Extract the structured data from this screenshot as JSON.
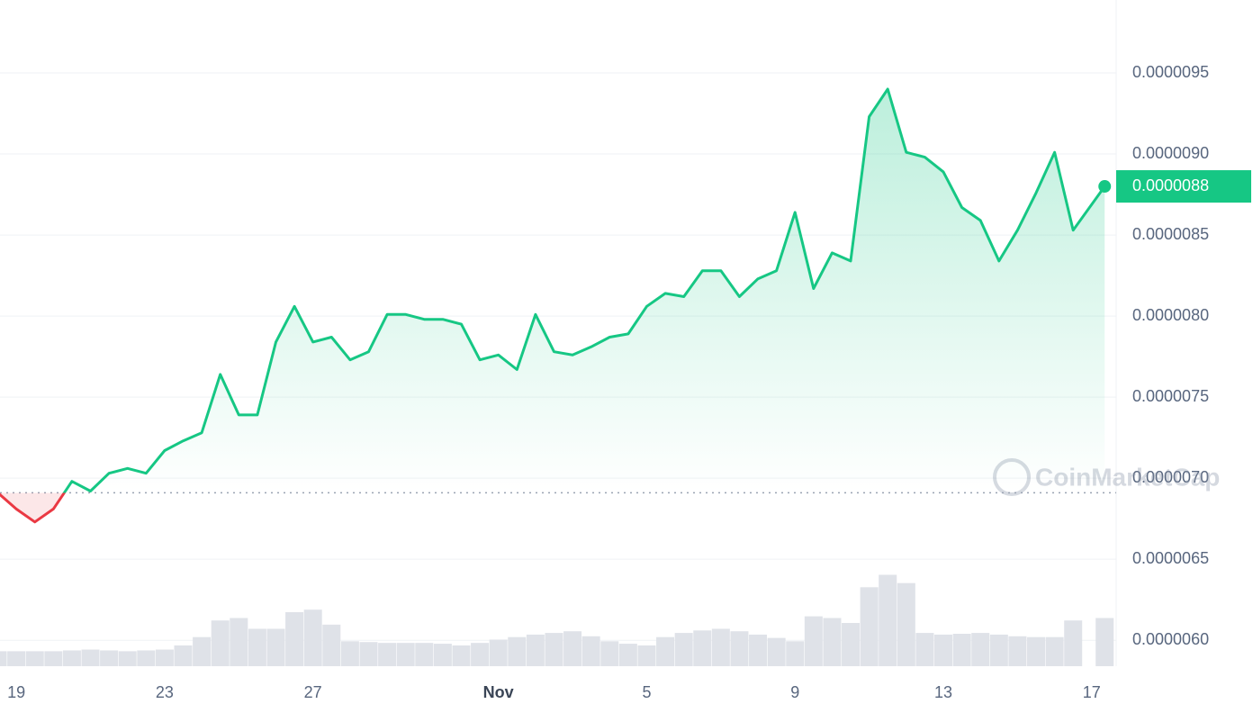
{
  "chart_data": {
    "type": "line",
    "color": "#16c784",
    "down_color": "#ea3943",
    "baseline": 6.91e-06,
    "watermark": "CoinMarketCap",
    "x": [
      -0.5,
      0,
      0.5,
      1,
      1.5,
      2,
      2.5,
      3,
      3.5,
      4,
      4.5,
      5,
      5.5,
      6,
      6.5,
      7,
      7.5,
      8,
      8.5,
      9,
      9.5,
      10,
      10.5,
      11,
      11.5,
      12,
      12.5,
      13,
      13.5,
      14,
      14.5,
      15,
      15.5,
      16,
      16.5,
      17,
      17.5,
      18,
      18.5,
      19,
      19.5,
      20,
      20.5,
      21,
      21.5,
      22,
      22.5,
      23,
      23.5,
      24,
      24.5,
      25,
      25.5,
      26,
      26.5,
      27,
      27.5,
      28,
      28.5,
      29.35
    ],
    "values": [
      6.91e-06,
      6.81e-06,
      6.73e-06,
      6.81e-06,
      6.98e-06,
      6.92e-06,
      7.03e-06,
      7.06e-06,
      7.03e-06,
      7.17e-06,
      7.23e-06,
      7.28e-06,
      7.64e-06,
      7.39e-06,
      7.39e-06,
      7.84e-06,
      8.06e-06,
      7.84e-06,
      7.87e-06,
      7.73e-06,
      7.78e-06,
      8.01e-06,
      8.01e-06,
      7.98e-06,
      7.98e-06,
      7.95e-06,
      7.73e-06,
      7.76e-06,
      7.67e-06,
      8.01e-06,
      7.78e-06,
      7.76e-06,
      7.81e-06,
      7.87e-06,
      7.89e-06,
      8.06e-06,
      8.14e-06,
      8.12e-06,
      8.28e-06,
      8.28e-06,
      8.12e-06,
      8.23e-06,
      8.28e-06,
      8.64e-06,
      8.17e-06,
      8.39e-06,
      8.34e-06,
      9.23e-06,
      9.4e-06,
      9.01e-06,
      8.98e-06,
      8.89e-06,
      8.67e-06,
      8.59e-06,
      8.34e-06,
      8.53e-06,
      8.76e-06,
      9.01e-06,
      8.53e-06,
      8.8e-06
    ],
    "volume": {
      "color": "#dfe2e8",
      "ylim": [
        0,
        130
      ],
      "values": [
        18,
        18,
        18,
        18,
        19,
        20,
        19,
        18,
        19,
        20,
        25,
        35,
        55,
        58,
        45,
        45,
        65,
        68,
        50,
        30,
        29,
        28,
        28,
        28,
        27,
        25,
        28,
        32,
        35,
        38,
        40,
        42,
        36,
        30,
        27,
        25,
        35,
        40,
        43,
        45,
        42,
        38,
        34,
        30,
        60,
        58,
        52,
        95,
        110,
        100,
        40,
        38,
        39,
        40,
        38,
        36,
        35,
        35,
        55,
        58
      ]
    },
    "xlim": [
      -0.44,
      29.66
    ],
    "xticks": [
      {
        "value": 0,
        "label": "19"
      },
      {
        "value": 4,
        "label": "23"
      },
      {
        "value": 8,
        "label": "27"
      },
      {
        "value": 13,
        "label": "Nov"
      },
      {
        "value": 17,
        "label": "5"
      },
      {
        "value": 21,
        "label": "9"
      },
      {
        "value": 25,
        "label": "13"
      },
      {
        "value": 29,
        "label": "17"
      }
    ],
    "ylim": [
      5.84e-06,
      9.95e-06
    ],
    "yticks": [
      {
        "value": 6e-06,
        "label": "0.0000060"
      },
      6.5e-06,
      {
        "value": 7e-06,
        "label": "0.0000070"
      },
      7.5e-06,
      {
        "value": 8e-06,
        "label": "0.0000080"
      },
      8.5e-06,
      {
        "value": 9e-06,
        "label": "0.0000090"
      },
      9.5e-06
    ],
    "grid": true
  }
}
